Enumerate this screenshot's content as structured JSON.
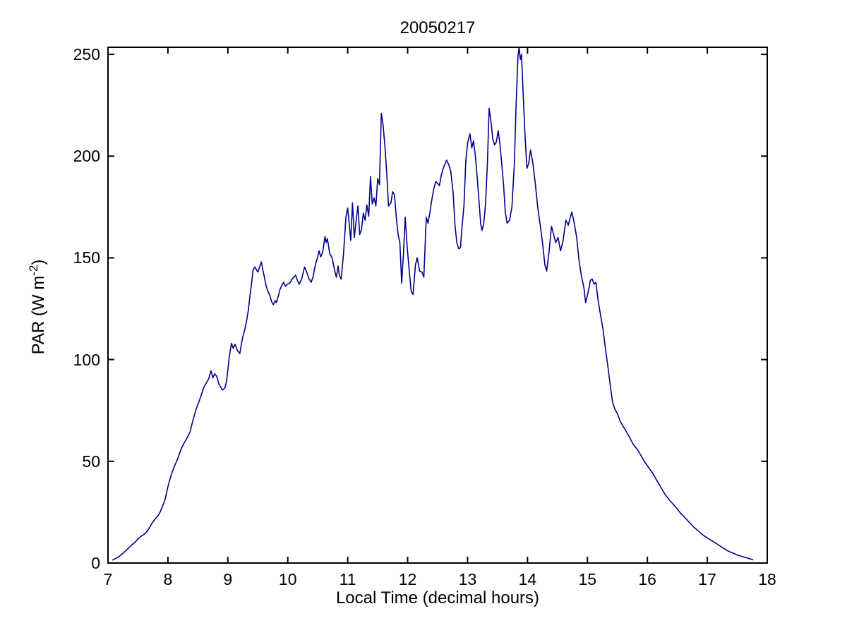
{
  "figure": {
    "title": "20050217",
    "xlabel": "Local Time (decimal hours)",
    "ylabel_pre": "PAR (W m",
    "ylabel_sup": "-2",
    "ylabel_post": ")"
  },
  "colors": {
    "line": "#00008B",
    "axis": "#000000",
    "background": "#FFFFFF"
  },
  "chart_data": {
    "type": "line",
    "title": "20050217",
    "xlabel": "Local Time (decimal hours)",
    "ylabel": "PAR (W m^-2)",
    "xlim": [
      7,
      18
    ],
    "ylim": [
      0,
      250
    ],
    "x_ticks": [
      7,
      8,
      9,
      10,
      11,
      12,
      13,
      14,
      15,
      16,
      17,
      18
    ],
    "y_ticks": [
      0,
      50,
      100,
      150,
      200,
      250
    ],
    "grid": false,
    "legend": null,
    "series": [
      {
        "name": "PAR",
        "color": "#00008B",
        "points": [
          [
            7.08,
            1.5
          ],
          [
            7.13,
            2.3
          ],
          [
            7.18,
            3.1
          ],
          [
            7.23,
            4.3
          ],
          [
            7.28,
            5.6
          ],
          [
            7.33,
            7.0
          ],
          [
            7.39,
            8.7
          ],
          [
            7.45,
            10.2
          ],
          [
            7.5,
            11.9
          ],
          [
            7.55,
            13.1
          ],
          [
            7.6,
            14.0
          ],
          [
            7.64,
            15.1
          ],
          [
            7.69,
            17.3
          ],
          [
            7.74,
            19.8
          ],
          [
            7.79,
            21.8
          ],
          [
            7.83,
            23.0
          ],
          [
            7.87,
            25.1
          ],
          [
            7.91,
            27.8
          ],
          [
            7.95,
            31.0
          ],
          [
            8.0,
            37.5
          ],
          [
            8.05,
            43.0
          ],
          [
            8.1,
            47.0
          ],
          [
            8.16,
            51.0
          ],
          [
            8.22,
            56.0
          ],
          [
            8.27,
            59.0
          ],
          [
            8.32,
            61.5
          ],
          [
            8.37,
            64.5
          ],
          [
            8.42,
            70.5
          ],
          [
            8.47,
            75.5
          ],
          [
            8.52,
            79.5
          ],
          [
            8.56,
            83.0
          ],
          [
            8.6,
            86.5
          ],
          [
            8.64,
            88.5
          ],
          [
            8.68,
            90.5
          ],
          [
            8.72,
            94.5
          ],
          [
            8.75,
            91.0
          ],
          [
            8.78,
            93.0
          ],
          [
            8.81,
            92.0
          ],
          [
            8.85,
            88.0
          ],
          [
            8.88,
            86.5
          ],
          [
            8.91,
            85.0
          ],
          [
            8.95,
            86.0
          ],
          [
            8.98,
            89.5
          ],
          [
            9.02,
            100.5
          ],
          [
            9.06,
            108.0
          ],
          [
            9.09,
            105.5
          ],
          [
            9.12,
            107.5
          ],
          [
            9.16,
            104.5
          ],
          [
            9.2,
            103.0
          ],
          [
            9.24,
            110.0
          ],
          [
            9.28,
            114.5
          ],
          [
            9.31,
            118.5
          ],
          [
            9.34,
            124.0
          ],
          [
            9.37,
            131.5
          ],
          [
            9.4,
            138.5
          ],
          [
            9.42,
            144.0
          ],
          [
            9.45,
            145.5
          ],
          [
            9.48,
            144.0
          ],
          [
            9.5,
            143.0
          ],
          [
            9.53,
            145.5
          ],
          [
            9.56,
            148.0
          ],
          [
            9.58,
            144.5
          ],
          [
            9.61,
            140.5
          ],
          [
            9.64,
            136.0
          ],
          [
            9.67,
            133.5
          ],
          [
            9.7,
            131.5
          ],
          [
            9.73,
            128.5
          ],
          [
            9.76,
            127.0
          ],
          [
            9.79,
            129.0
          ],
          [
            9.81,
            128.0
          ],
          [
            9.84,
            131.0
          ],
          [
            9.87,
            134.5
          ],
          [
            9.9,
            136.5
          ],
          [
            9.93,
            138.0
          ],
          [
            9.96,
            136.0
          ],
          [
            9.99,
            137.0
          ],
          [
            10.03,
            137.5
          ],
          [
            10.07,
            139.5
          ],
          [
            10.1,
            140.5
          ],
          [
            10.13,
            141.5
          ],
          [
            10.16,
            139.0
          ],
          [
            10.19,
            137.0
          ],
          [
            10.23,
            139.5
          ],
          [
            10.28,
            145.5
          ],
          [
            10.31,
            143.5
          ],
          [
            10.35,
            140.0
          ],
          [
            10.39,
            138.0
          ],
          [
            10.42,
            140.5
          ],
          [
            10.46,
            146.5
          ],
          [
            10.5,
            150.5
          ],
          [
            10.52,
            153.5
          ],
          [
            10.55,
            150.5
          ],
          [
            10.58,
            152.5
          ],
          [
            10.62,
            160.5
          ],
          [
            10.64,
            157.5
          ],
          [
            10.66,
            159.5
          ],
          [
            10.7,
            152.0
          ],
          [
            10.74,
            150.0
          ],
          [
            10.78,
            144.0
          ],
          [
            10.81,
            140.5
          ],
          [
            10.84,
            146.0
          ],
          [
            10.86,
            141.5
          ],
          [
            10.89,
            139.5
          ],
          [
            10.93,
            152.0
          ],
          [
            10.97,
            170.0
          ],
          [
            11.0,
            174.5
          ],
          [
            11.03,
            165.0
          ],
          [
            11.05,
            158.5
          ],
          [
            11.08,
            177.0
          ],
          [
            11.11,
            160.0
          ],
          [
            11.14,
            168.0
          ],
          [
            11.17,
            175.5
          ],
          [
            11.2,
            161.5
          ],
          [
            11.23,
            164.0
          ],
          [
            11.26,
            172.0
          ],
          [
            11.29,
            168.5
          ],
          [
            11.32,
            176.0
          ],
          [
            11.35,
            170.5
          ],
          [
            11.38,
            190.0
          ],
          [
            11.41,
            176.5
          ],
          [
            11.44,
            179.5
          ],
          [
            11.47,
            175.5
          ],
          [
            11.5,
            189.0
          ],
          [
            11.53,
            186.0
          ],
          [
            11.56,
            221.0
          ],
          [
            11.59,
            215.5
          ],
          [
            11.62,
            205.0
          ],
          [
            11.65,
            192.5
          ],
          [
            11.68,
            175.5
          ],
          [
            11.72,
            177.0
          ],
          [
            11.75,
            182.5
          ],
          [
            11.78,
            181.0
          ],
          [
            11.81,
            170.0
          ],
          [
            11.84,
            161.5
          ],
          [
            11.87,
            157.5
          ],
          [
            11.9,
            137.5
          ],
          [
            11.93,
            152.0
          ],
          [
            11.96,
            170.0
          ],
          [
            11.99,
            156.0
          ],
          [
            12.03,
            142.5
          ],
          [
            12.06,
            133.5
          ],
          [
            12.09,
            132.0
          ],
          [
            12.13,
            146.5
          ],
          [
            12.16,
            150.0
          ],
          [
            12.2,
            143.5
          ],
          [
            12.24,
            143.0
          ],
          [
            12.27,
            140.5
          ],
          [
            12.31,
            170.0
          ],
          [
            12.34,
            167.0
          ],
          [
            12.37,
            172.0
          ],
          [
            12.4,
            178.0
          ],
          [
            12.44,
            184.5
          ],
          [
            12.47,
            187.5
          ],
          [
            12.5,
            186.5
          ],
          [
            12.53,
            185.5
          ],
          [
            12.56,
            190.5
          ],
          [
            12.6,
            194.5
          ],
          [
            12.65,
            198.0
          ],
          [
            12.69,
            195.5
          ],
          [
            12.72,
            192.5
          ],
          [
            12.76,
            181.5
          ],
          [
            12.79,
            166.0
          ],
          [
            12.82,
            157.5
          ],
          [
            12.85,
            154.5
          ],
          [
            12.88,
            155.0
          ],
          [
            12.91,
            166.0
          ],
          [
            12.94,
            176.0
          ],
          [
            12.97,
            197.5
          ],
          [
            13.0,
            206.5
          ],
          [
            13.04,
            211.0
          ],
          [
            13.07,
            204.0
          ],
          [
            13.1,
            207.5
          ],
          [
            13.13,
            200.0
          ],
          [
            13.16,
            190.0
          ],
          [
            13.19,
            178.0
          ],
          [
            13.22,
            166.5
          ],
          [
            13.24,
            163.5
          ],
          [
            13.27,
            167.0
          ],
          [
            13.3,
            176.5
          ],
          [
            13.33,
            196.0
          ],
          [
            13.36,
            223.5
          ],
          [
            13.39,
            217.0
          ],
          [
            13.42,
            208.5
          ],
          [
            13.45,
            205.5
          ],
          [
            13.48,
            207.0
          ],
          [
            13.51,
            212.5
          ],
          [
            13.54,
            206.0
          ],
          [
            13.57,
            196.0
          ],
          [
            13.6,
            186.0
          ],
          [
            13.63,
            172.5
          ],
          [
            13.66,
            167.0
          ],
          [
            13.7,
            168.5
          ],
          [
            13.74,
            175.0
          ],
          [
            13.78,
            196.0
          ],
          [
            13.81,
            225.0
          ],
          [
            13.84,
            249.0
          ],
          [
            13.86,
            253.5
          ],
          [
            13.88,
            247.5
          ],
          [
            13.9,
            250.0
          ],
          [
            13.93,
            229.0
          ],
          [
            13.96,
            209.0
          ],
          [
            13.99,
            194.0
          ],
          [
            14.02,
            196.5
          ],
          [
            14.05,
            203.0
          ],
          [
            14.09,
            196.5
          ],
          [
            14.13,
            186.5
          ],
          [
            14.17,
            175.0
          ],
          [
            14.21,
            166.5
          ],
          [
            14.25,
            157.5
          ],
          [
            14.29,
            146.5
          ],
          [
            14.32,
            143.5
          ],
          [
            14.36,
            153.0
          ],
          [
            14.4,
            165.5
          ],
          [
            14.44,
            161.0
          ],
          [
            14.47,
            157.5
          ],
          [
            14.51,
            160.0
          ],
          [
            14.55,
            153.5
          ],
          [
            14.59,
            158.0
          ],
          [
            14.64,
            168.5
          ],
          [
            14.68,
            166.0
          ],
          [
            14.71,
            169.5
          ],
          [
            14.74,
            172.5
          ],
          [
            14.78,
            167.0
          ],
          [
            14.82,
            160.0
          ],
          [
            14.86,
            148.5
          ],
          [
            14.9,
            141.0
          ],
          [
            14.94,
            135.5
          ],
          [
            14.97,
            128.0
          ],
          [
            15.01,
            133.0
          ],
          [
            15.05,
            139.0
          ],
          [
            15.08,
            139.5
          ],
          [
            15.11,
            137.0
          ],
          [
            15.14,
            138.0
          ],
          [
            15.18,
            128.5
          ],
          [
            15.22,
            121.5
          ],
          [
            15.26,
            115.0
          ],
          [
            15.3,
            105.5
          ],
          [
            15.34,
            97.0
          ],
          [
            15.38,
            87.5
          ],
          [
            15.42,
            79.0
          ],
          [
            15.46,
            75.5
          ],
          [
            15.5,
            73.5
          ],
          [
            15.55,
            69.5
          ],
          [
            15.6,
            67.0
          ],
          [
            15.65,
            64.5
          ],
          [
            15.7,
            62.0
          ],
          [
            15.76,
            58.5
          ],
          [
            15.8,
            57.0
          ],
          [
            15.84,
            55.5
          ],
          [
            15.9,
            52.5
          ],
          [
            15.96,
            49.5
          ],
          [
            16.02,
            47.0
          ],
          [
            16.08,
            44.5
          ],
          [
            16.15,
            41.0
          ],
          [
            16.22,
            37.5
          ],
          [
            16.3,
            33.5
          ],
          [
            16.38,
            30.5
          ],
          [
            16.46,
            28.0
          ],
          [
            16.54,
            25.0
          ],
          [
            16.62,
            22.5
          ],
          [
            16.7,
            20.0
          ],
          [
            16.78,
            17.5
          ],
          [
            16.86,
            15.5
          ],
          [
            16.94,
            13.5
          ],
          [
            17.02,
            12.0
          ],
          [
            17.1,
            10.5
          ],
          [
            17.18,
            9.0
          ],
          [
            17.26,
            7.5
          ],
          [
            17.34,
            6.0
          ],
          [
            17.42,
            5.0
          ],
          [
            17.5,
            4.0
          ],
          [
            17.58,
            3.2
          ],
          [
            17.65,
            2.6
          ],
          [
            17.72,
            2.0
          ],
          [
            17.76,
            1.6
          ]
        ]
      }
    ]
  }
}
